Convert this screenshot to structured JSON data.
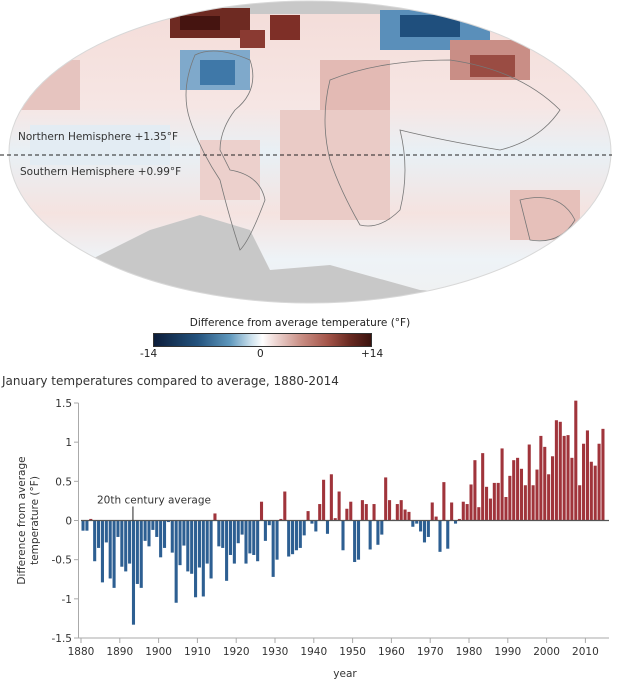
{
  "map": {
    "northern_label": "Northern Hemisphere +1.35°F",
    "southern_label": "Southern Hemisphere +0.99°F",
    "legend": {
      "title": "Difference from average temperature (°F)",
      "min_label": "-14",
      "mid_label": "0",
      "max_label": "+14",
      "range": [
        -14,
        14
      ],
      "cold_color": "#0c1d3a",
      "warm_color": "#3b130e"
    }
  },
  "chart_data": {
    "type": "bar",
    "title": "January temperatures compared to average, 1880-2014",
    "xlabel": "year",
    "ylabel": "Difference from average temperature (°F)",
    "ylim": [
      -1.5,
      1.5
    ],
    "xlim": [
      1880,
      2014
    ],
    "yticks": [
      "1.5",
      "1",
      "0.5",
      "0",
      "-0.5",
      "-1",
      "-1.5"
    ],
    "ytick_values": [
      1.5,
      1,
      0.5,
      0,
      -0.5,
      -1,
      -1.5
    ],
    "xticks": [
      1880,
      1890,
      1900,
      1910,
      1920,
      1930,
      1940,
      1950,
      1960,
      1970,
      1980,
      1990,
      2000,
      2010
    ],
    "annotation": "20th century average",
    "annotation_year": 1893,
    "positive_color": "#a0343b",
    "negative_color": "#2d5f92",
    "grid": false,
    "x": [
      1880,
      1881,
      1882,
      1883,
      1884,
      1885,
      1886,
      1887,
      1888,
      1889,
      1890,
      1891,
      1892,
      1893,
      1894,
      1895,
      1896,
      1897,
      1898,
      1899,
      1900,
      1901,
      1902,
      1903,
      1904,
      1905,
      1906,
      1907,
      1908,
      1909,
      1910,
      1911,
      1912,
      1913,
      1914,
      1915,
      1916,
      1917,
      1918,
      1919,
      1920,
      1921,
      1922,
      1923,
      1924,
      1925,
      1926,
      1927,
      1928,
      1929,
      1930,
      1931,
      1932,
      1933,
      1934,
      1935,
      1936,
      1937,
      1938,
      1939,
      1940,
      1941,
      1942,
      1943,
      1944,
      1945,
      1946,
      1947,
      1948,
      1949,
      1950,
      1951,
      1952,
      1953,
      1954,
      1955,
      1956,
      1957,
      1958,
      1959,
      1960,
      1961,
      1962,
      1963,
      1964,
      1965,
      1966,
      1967,
      1968,
      1969,
      1970,
      1971,
      1972,
      1973,
      1974,
      1975,
      1976,
      1977,
      1978,
      1979,
      1980,
      1981,
      1982,
      1983,
      1984,
      1985,
      1986,
      1987,
      1988,
      1989,
      1990,
      1991,
      1992,
      1993,
      1994,
      1995,
      1996,
      1997,
      1998,
      1999,
      2000,
      2001,
      2002,
      2003,
      2004,
      2005,
      2006,
      2007,
      2008,
      2009,
      2010,
      2011,
      2012,
      2013,
      2014
    ],
    "values": [
      -0.13,
      -0.13,
      0.02,
      -0.52,
      -0.35,
      -0.79,
      -0.28,
      -0.74,
      -0.86,
      -0.21,
      -0.59,
      -0.65,
      -0.55,
      -1.33,
      -0.81,
      -0.86,
      -0.26,
      -0.33,
      -0.12,
      -0.21,
      -0.47,
      -0.35,
      -0.02,
      -0.41,
      -1.05,
      -0.57,
      -0.32,
      -0.65,
      -0.68,
      -0.98,
      -0.6,
      -0.97,
      -0.55,
      -0.74,
      0.09,
      -0.33,
      -0.35,
      -0.77,
      -0.44,
      -0.55,
      -0.29,
      -0.18,
      -0.55,
      -0.42,
      -0.44,
      -0.52,
      0.24,
      -0.26,
      -0.06,
      -0.72,
      -0.5,
      0.02,
      0.37,
      -0.46,
      -0.43,
      -0.38,
      -0.35,
      -0.19,
      0.12,
      -0.04,
      -0.14,
      0.21,
      0.52,
      -0.17,
      0.59,
      0.03,
      0.37,
      -0.38,
      0.15,
      0.24,
      -0.53,
      -0.5,
      0.26,
      0.21,
      -0.37,
      0.21,
      -0.31,
      -0.18,
      0.55,
      0.26,
      0.01,
      0.21,
      0.26,
      0.14,
      0.11,
      -0.08,
      -0.04,
      -0.14,
      -0.28,
      -0.21,
      0.23,
      0.05,
      -0.4,
      0.49,
      -0.36,
      0.23,
      -0.04,
      0.02,
      0.24,
      0.21,
      0.46,
      0.77,
      0.17,
      0.86,
      0.43,
      0.28,
      0.48,
      0.48,
      0.92,
      0.3,
      0.57,
      0.77,
      0.8,
      0.66,
      0.45,
      0.97,
      0.45,
      0.65,
      1.08,
      0.94,
      0.59,
      0.82,
      1.28,
      1.26,
      1.08,
      1.09,
      0.8,
      1.53,
      0.45,
      0.98,
      1.15,
      0.75,
      0.7,
      0.98,
      1.17
    ]
  }
}
